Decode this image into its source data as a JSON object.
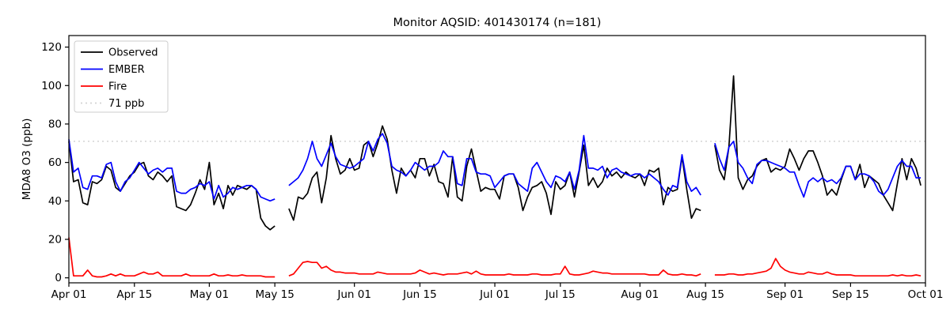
{
  "chart_data": {
    "type": "line",
    "title": "Monitor AQSID: 401430174 (n=181)",
    "xlabel": "",
    "ylabel": "MDA8 O3 (ppb)",
    "ylim": [
      -2.6,
      126
    ],
    "yticks": [
      0,
      20,
      40,
      60,
      80,
      100,
      120
    ],
    "x_total_days": 183,
    "xticks": [
      {
        "day": 0,
        "label": "Apr 01"
      },
      {
        "day": 14,
        "label": "Apr 15"
      },
      {
        "day": 30,
        "label": "May 01"
      },
      {
        "day": 44,
        "label": "May 15"
      },
      {
        "day": 61,
        "label": "Jun 01"
      },
      {
        "day": 75,
        "label": "Jun 15"
      },
      {
        "day": 91,
        "label": "Jul 01"
      },
      {
        "day": 105,
        "label": "Jul 15"
      },
      {
        "day": 122,
        "label": "Aug 01"
      },
      {
        "day": 136,
        "label": "Aug 15"
      },
      {
        "day": 153,
        "label": "Sep 01"
      },
      {
        "day": 167,
        "label": "Sep 15"
      },
      {
        "day": 183,
        "label": "Oct 01"
      }
    ],
    "grid": false,
    "legend_position": "upper-left",
    "threshold": {
      "value": 71,
      "label": "71 ppb",
      "color": "#d3d3d3",
      "style": "dotted"
    },
    "series": [
      {
        "name": "Observed",
        "color": "#000000",
        "values": [
          71,
          50,
          51,
          39,
          38,
          50,
          49,
          51,
          58,
          56,
          47,
          45,
          49,
          53,
          55,
          59,
          60,
          53,
          51,
          55,
          53,
          50,
          53,
          37,
          36,
          35,
          38,
          44,
          51,
          46,
          60,
          38,
          44,
          36,
          48,
          43,
          48,
          47,
          46,
          48,
          46,
          31,
          27,
          25,
          27,
          null,
          null,
          36,
          30,
          42,
          41,
          44,
          52,
          55,
          39,
          52,
          74,
          62,
          54,
          56,
          62,
          56,
          57,
          69,
          71,
          63,
          70,
          79,
          72,
          56,
          44,
          57,
          53,
          56,
          52,
          62,
          62,
          53,
          59,
          50,
          49,
          42,
          63,
          42,
          40,
          58,
          67,
          56,
          45,
          47,
          46,
          46,
          41,
          53,
          54,
          54,
          47,
          35,
          42,
          47,
          48,
          50,
          44,
          33,
          50,
          46,
          48,
          55,
          42,
          55,
          69,
          48,
          52,
          47,
          50,
          57,
          53,
          55,
          52,
          55,
          53,
          52,
          54,
          48,
          56,
          55,
          57,
          38,
          47,
          45,
          46,
          63,
          46,
          31,
          36,
          35,
          null,
          null,
          69,
          56,
          51,
          68,
          105,
          52,
          46,
          51,
          53,
          58,
          61,
          62,
          55,
          57,
          56,
          58,
          67,
          62,
          56,
          62,
          66,
          66,
          60,
          53,
          43,
          46,
          43,
          51,
          58,
          58,
          51,
          59,
          47,
          53,
          51,
          49,
          43,
          39,
          35,
          49,
          62,
          51,
          62,
          57,
          48
        ]
      },
      {
        "name": "EMBER",
        "color": "#0000ff",
        "values": [
          72,
          55,
          57,
          47,
          46,
          53,
          53,
          52,
          59,
          60,
          50,
          45,
          50,
          52,
          56,
          60,
          57,
          54,
          56,
          57,
          55,
          57,
          57,
          45,
          44,
          44,
          46,
          47,
          49,
          48,
          50,
          41,
          48,
          42,
          44,
          47,
          46,
          47,
          48,
          48,
          46,
          42,
          41,
          40,
          41,
          null,
          null,
          48,
          50,
          52,
          56,
          62,
          71,
          62,
          58,
          64,
          70,
          63,
          59,
          58,
          57,
          58,
          60,
          62,
          71,
          66,
          72,
          75,
          70,
          58,
          56,
          55,
          53,
          56,
          60,
          58,
          56,
          58,
          58,
          60,
          66,
          63,
          63,
          49,
          48,
          62,
          62,
          55,
          54,
          54,
          53,
          47,
          50,
          53,
          54,
          54,
          49,
          47,
          45,
          57,
          60,
          55,
          50,
          47,
          53,
          52,
          50,
          55,
          46,
          56,
          74,
          57,
          57,
          56,
          58,
          52,
          56,
          57,
          55,
          54,
          53,
          54,
          54,
          52,
          54,
          52,
          50,
          46,
          43,
          48,
          47,
          64,
          50,
          45,
          47,
          43,
          null,
          null,
          70,
          62,
          56,
          68,
          71,
          60,
          57,
          52,
          49,
          59,
          61,
          61,
          60,
          59,
          58,
          57,
          55,
          55,
          48,
          42,
          50,
          52,
          50,
          52,
          50,
          51,
          49,
          52,
          58,
          58,
          51,
          54,
          54,
          53,
          50,
          45,
          43,
          46,
          52,
          58,
          61,
          58,
          58,
          52,
          52
        ]
      },
      {
        "name": "Fire",
        "color": "#ff0000",
        "values": [
          21,
          1,
          1,
          1,
          4,
          1,
          0.5,
          0.5,
          1,
          2,
          1,
          2,
          1,
          1,
          1,
          2,
          3,
          2,
          2,
          3,
          1,
          1,
          1,
          1,
          1,
          2,
          1,
          1,
          1,
          1,
          1,
          2,
          1,
          1,
          1.5,
          1,
          1,
          1.5,
          1,
          1,
          1,
          1,
          0.5,
          0.5,
          0.5,
          null,
          null,
          1,
          2,
          5,
          8,
          8.5,
          8,
          8,
          5,
          6,
          4,
          3,
          3,
          2.5,
          2.5,
          2.5,
          2,
          2,
          2,
          2,
          3,
          2.5,
          2,
          2,
          2,
          2,
          2,
          2,
          2.5,
          4,
          3,
          2,
          2.5,
          2,
          1.5,
          2,
          2,
          2,
          2.5,
          3,
          2,
          3.5,
          2,
          1.5,
          1.5,
          1.5,
          1.5,
          1.5,
          2,
          1.5,
          1.5,
          1.5,
          1.5,
          2,
          2,
          1.5,
          1.5,
          1.5,
          2,
          2,
          6,
          2,
          1.5,
          1.5,
          2,
          2.5,
          3.5,
          3,
          2.5,
          2.5,
          2,
          2,
          2,
          2,
          2,
          2,
          2,
          2,
          1.5,
          1.5,
          1.5,
          4,
          2,
          1.5,
          1.5,
          2,
          1.5,
          1.5,
          1,
          2,
          null,
          null,
          1.5,
          1.5,
          1.5,
          2,
          2,
          1.5,
          1.5,
          2,
          2,
          2.5,
          3,
          3.5,
          5,
          10,
          6,
          4,
          3,
          2.5,
          2,
          2,
          3,
          2.5,
          2,
          2,
          3,
          2,
          1.5,
          1.5,
          1.5,
          1.5,
          1,
          1,
          1,
          1,
          1,
          1,
          1,
          1,
          1.5,
          1,
          1.5,
          1,
          1,
          1.5,
          1
        ]
      }
    ],
    "legend_entries": [
      "Observed",
      "EMBER",
      "Fire",
      "71 ppb"
    ]
  }
}
